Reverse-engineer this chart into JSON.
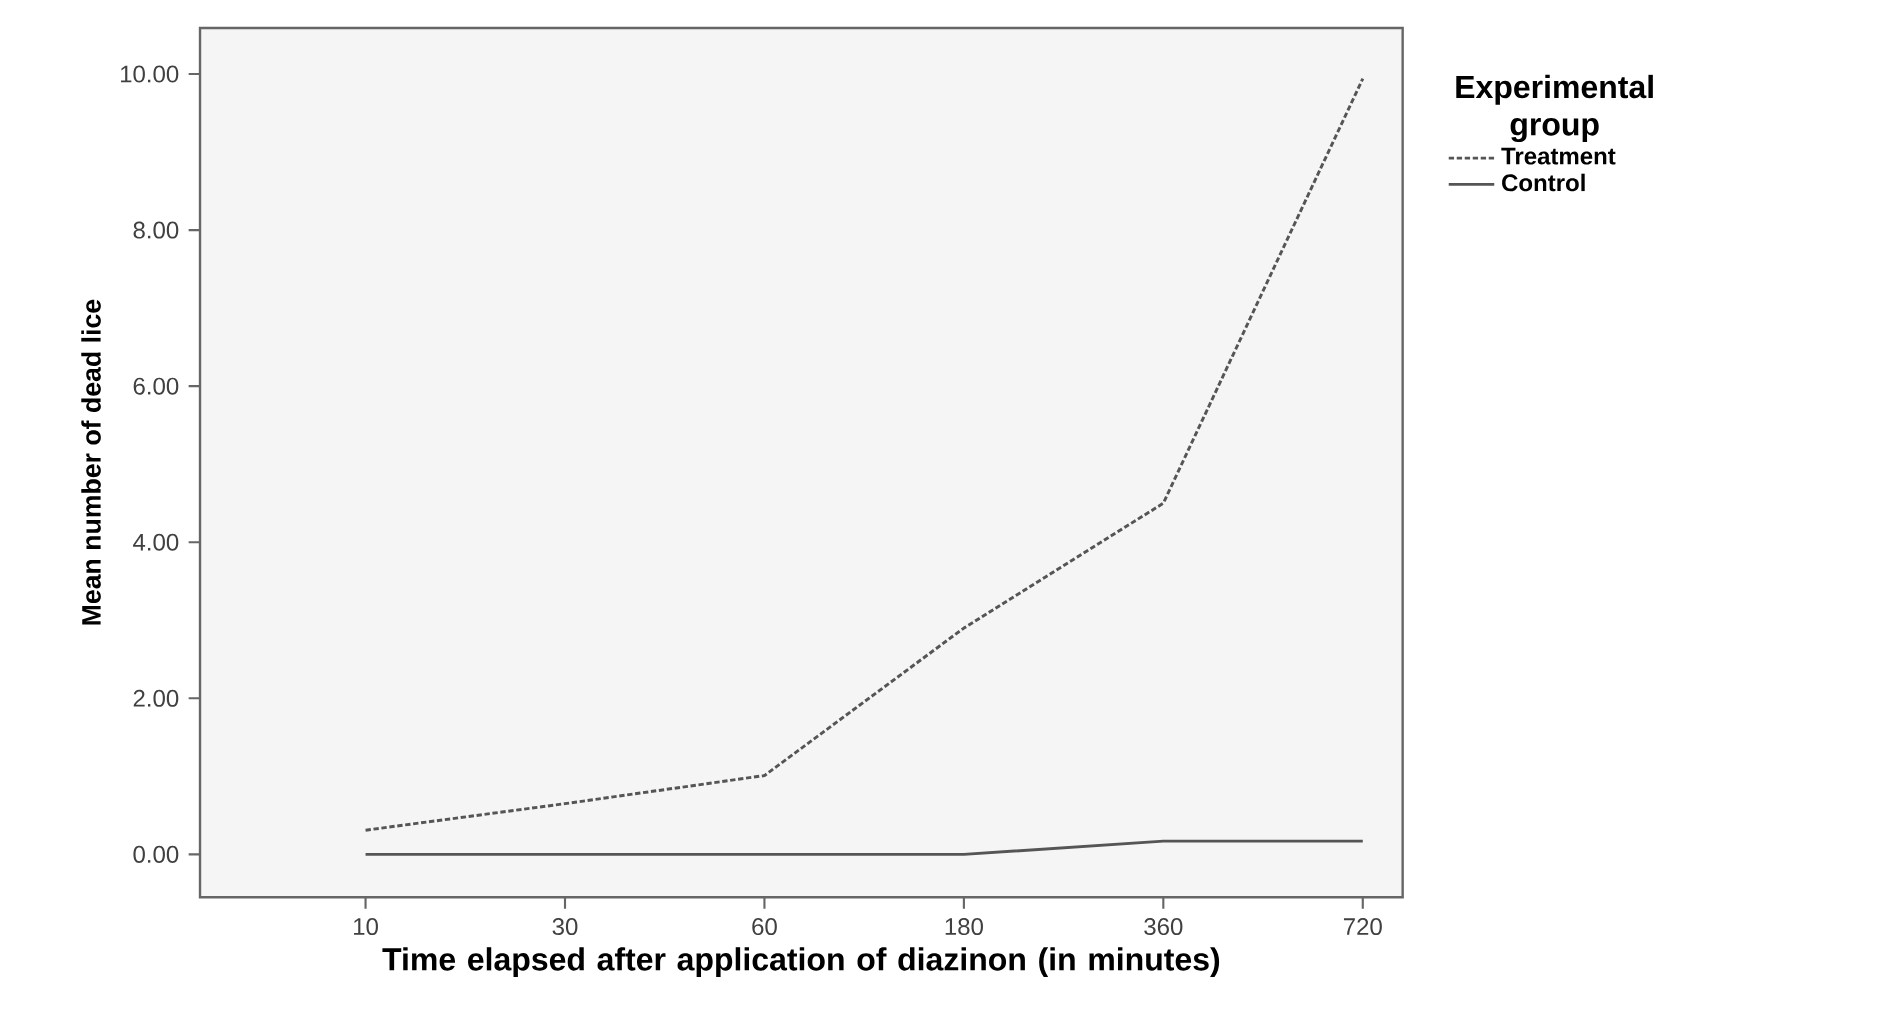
{
  "chart_data": {
    "type": "line",
    "xlabel": "Time elapsed after application of diazinon (in minutes)",
    "ylabel": "Mean number of dead lice",
    "legend_title": "Experimental group",
    "categories": [
      "10",
      "30",
      "60",
      "180",
      "360",
      "720"
    ],
    "series": [
      {
        "name": "Treatment",
        "color": "#555555",
        "line_style": "dotted",
        "values": [
          0.31,
          0.65,
          1.01,
          2.9,
          4.5,
          9.94
        ]
      },
      {
        "name": "Control",
        "color": "#555555",
        "line_style": "solid",
        "values": [
          0,
          0,
          0,
          0,
          0.17,
          0.17
        ]
      }
    ],
    "ylim": [
      -0.55,
      10.59
    ],
    "yticks": [
      {
        "value": 0,
        "label": "0.00"
      },
      {
        "value": 2,
        "label": "2.00"
      },
      {
        "value": 4,
        "label": "4.00"
      },
      {
        "value": 6,
        "label": "6.00"
      },
      {
        "value": 8,
        "label": "8.00"
      },
      {
        "value": 10,
        "label": "10.00"
      }
    ],
    "legend": "top right",
    "marker": "none",
    "grid": false
  }
}
